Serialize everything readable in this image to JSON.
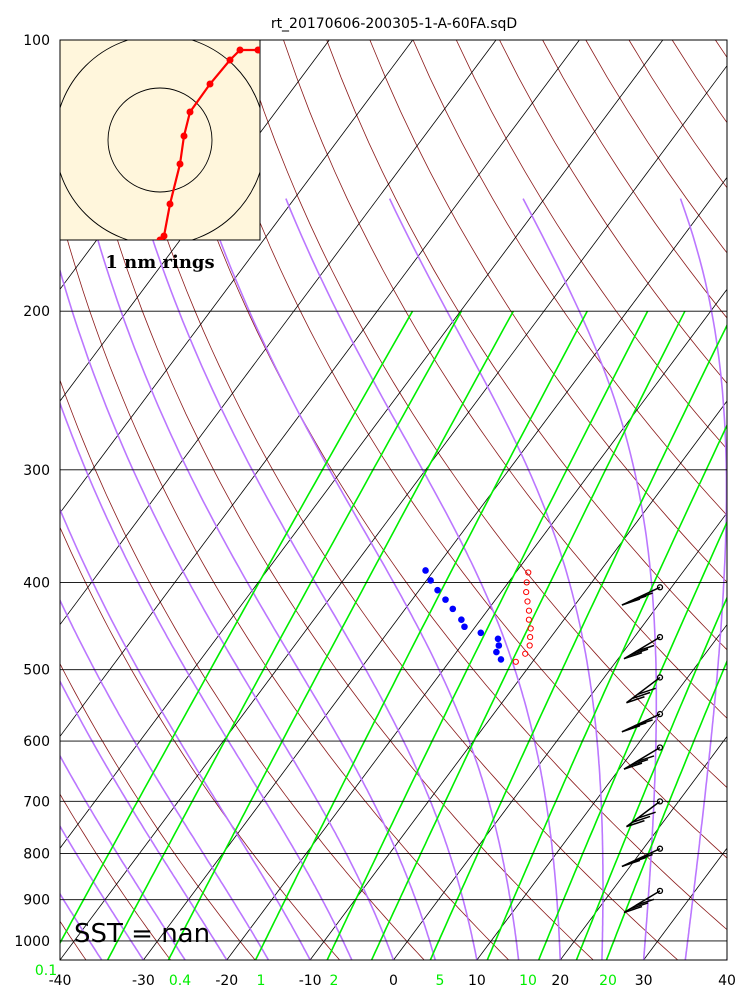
{
  "chart_data": {
    "type": "skew-t",
    "title": "rt_20170606-200305-1-A-60FA.sqD",
    "pressure_ticks": [
      100,
      200,
      300,
      400,
      500,
      600,
      700,
      800,
      900,
      1000
    ],
    "temp_ticks": [
      -40,
      -30,
      -20,
      -10,
      0,
      10,
      20,
      30,
      40
    ],
    "temp_range": [
      -40,
      40
    ],
    "pressure_range": [
      100,
      1050
    ],
    "mixing_ratio_labels": [
      "0.1",
      "0.4",
      "1",
      "2",
      "5",
      "10",
      "20"
    ],
    "sst_label": "SST =  nan",
    "hodograph_label": "1 nm rings",
    "colors": {
      "temperature": "#ff0000",
      "dewpoint": "#0000ff",
      "isotherm": "#000000",
      "dry_adiabat": "#8b1a1a",
      "moist_adiabat": "#bb77ff",
      "mixing_ratio": "#00ee00",
      "hodo_bg": "#fff6dc"
    },
    "temperature_profile": [
      {
        "p": 390,
        "t": -18.5
      },
      {
        "p": 400,
        "t": -17.8
      },
      {
        "p": 410,
        "t": -17.0
      },
      {
        "p": 420,
        "t": -16.0
      },
      {
        "p": 430,
        "t": -15.0
      },
      {
        "p": 440,
        "t": -14.2
      },
      {
        "p": 450,
        "t": -13.2
      },
      {
        "p": 460,
        "t": -12.5
      },
      {
        "p": 470,
        "t": -11.8
      },
      {
        "p": 480,
        "t": -11.6
      },
      {
        "p": 490,
        "t": -12.0
      }
    ],
    "dewpoint_profile": [
      {
        "p": 388,
        "t": -31.0
      },
      {
        "p": 398,
        "t": -29.5
      },
      {
        "p": 408,
        "t": -27.8
      },
      {
        "p": 418,
        "t": -26.0
      },
      {
        "p": 428,
        "t": -24.3
      },
      {
        "p": 440,
        "t": -22.3
      },
      {
        "p": 448,
        "t": -21.3
      },
      {
        "p": 455,
        "t": -18.8
      },
      {
        "p": 462,
        "t": -16.2
      },
      {
        "p": 470,
        "t": -15.5
      },
      {
        "p": 478,
        "t": -15.2
      },
      {
        "p": 487,
        "t": -14.0
      }
    ],
    "wind_barbs": [
      {
        "p": 405
      },
      {
        "p": 460
      },
      {
        "p": 510
      },
      {
        "p": 560
      },
      {
        "p": 610
      },
      {
        "p": 700
      },
      {
        "p": 790
      },
      {
        "p": 880
      }
    ],
    "hodograph_path": [
      [
        0.99,
        0.025
      ],
      [
        0.9,
        0.025
      ],
      [
        0.85,
        0.05
      ],
      [
        0.75,
        0.11
      ],
      [
        0.65,
        0.18
      ],
      [
        0.62,
        0.24
      ],
      [
        0.6,
        0.31
      ],
      [
        0.55,
        0.41
      ],
      [
        0.52,
        0.49
      ],
      [
        0.5,
        0.5
      ]
    ]
  }
}
